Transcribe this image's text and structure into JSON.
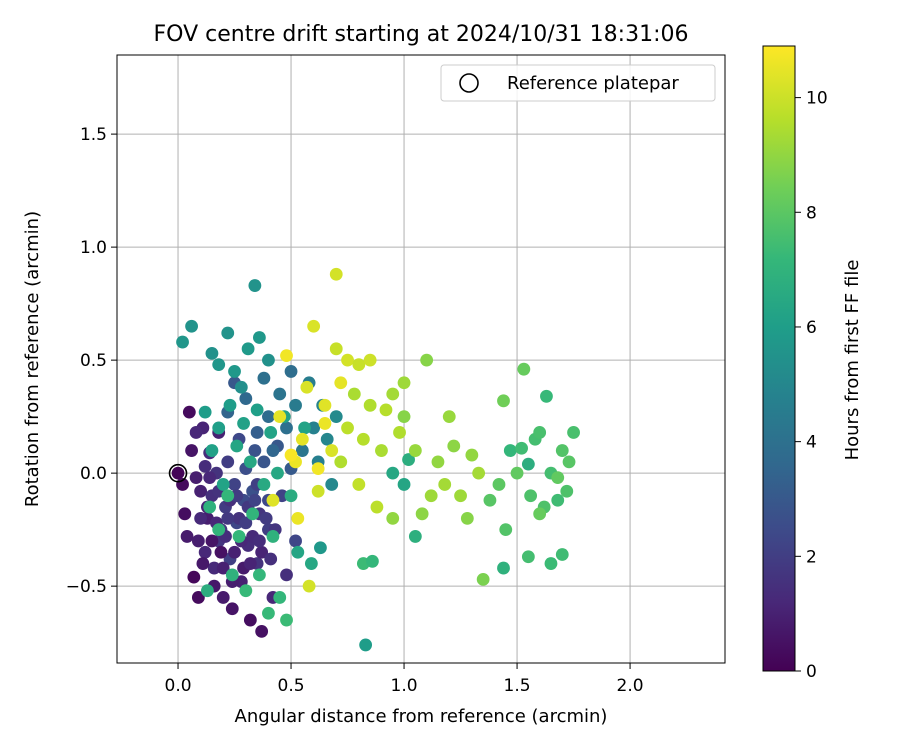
{
  "chart_data": {
    "type": "scatter",
    "title": "FOV centre drift starting at 2024/10/31 18:31:06",
    "xlabel": "Angular distance from reference (arcmin)",
    "ylabel": "Rotation from reference (arcmin)",
    "xlim": [
      -0.27,
      2.42
    ],
    "ylim": [
      -0.84,
      1.85
    ],
    "x_ticks": [
      "0.0",
      "0.5",
      "1.0",
      "1.5",
      "2.0"
    ],
    "y_ticks": [
      "−0.5",
      "0.0",
      "0.5",
      "1.0",
      "1.5"
    ],
    "x_tick_values": [
      0,
      0.5,
      1.0,
      1.5,
      2.0
    ],
    "y_tick_values": [
      -0.5,
      0,
      0.5,
      1.0,
      1.5
    ],
    "grid": true,
    "legend": {
      "position": "top-right",
      "entries": [
        "Reference platepar"
      ]
    },
    "reference_point": {
      "x": 0.0,
      "y": 0.0
    },
    "colorbar": {
      "label": "Hours from first FF file",
      "colormap": "viridis",
      "range": [
        0,
        10.9
      ],
      "tick_labels": [
        "0",
        "2",
        "4",
        "6",
        "8",
        "10"
      ],
      "tick_values": [
        0,
        2,
        4,
        6,
        8,
        10
      ]
    },
    "colormap_stops": [
      "#440154",
      "#482878",
      "#3e4989",
      "#31688e",
      "#26828e",
      "#1f9e89",
      "#35b779",
      "#6ece58",
      "#b5de2b",
      "#fde725"
    ],
    "points": [
      [
        0.0,
        0.0,
        0.1
      ],
      [
        0.02,
        -0.05,
        0.3
      ],
      [
        0.03,
        -0.18,
        0.4
      ],
      [
        0.05,
        0.27,
        0.3
      ],
      [
        0.06,
        0.1,
        0.6
      ],
      [
        0.07,
        -0.46,
        0.2
      ],
      [
        0.04,
        -0.28,
        0.8
      ],
      [
        0.08,
        -0.02,
        0.9
      ],
      [
        0.09,
        -0.55,
        0.3
      ],
      [
        0.1,
        -0.08,
        1.0
      ],
      [
        0.11,
        0.2,
        1.1
      ],
      [
        0.12,
        -0.35,
        1.2
      ],
      [
        0.13,
        -0.2,
        0.9
      ],
      [
        0.14,
        0.09,
        1.4
      ],
      [
        0.15,
        -0.1,
        1.5
      ],
      [
        0.16,
        -0.42,
        1.3
      ],
      [
        0.17,
        0.0,
        1.6
      ],
      [
        0.18,
        -0.3,
        1.7
      ],
      [
        0.19,
        -0.25,
        1.8
      ],
      [
        0.2,
        -0.55,
        0.8
      ],
      [
        0.21,
        -0.15,
        1.9
      ],
      [
        0.22,
        0.05,
        2.0
      ],
      [
        0.23,
        -0.38,
        2.1
      ],
      [
        0.24,
        -0.6,
        0.6
      ],
      [
        0.25,
        -0.05,
        2.2
      ],
      [
        0.26,
        -0.22,
        2.3
      ],
      [
        0.27,
        0.15,
        2.4
      ],
      [
        0.28,
        -0.48,
        1.0
      ],
      [
        0.29,
        -0.12,
        2.5
      ],
      [
        0.3,
        0.02,
        2.6
      ],
      [
        0.31,
        -0.32,
        1.4
      ],
      [
        0.32,
        -0.65,
        0.4
      ],
      [
        0.33,
        -0.08,
        2.7
      ],
      [
        0.34,
        0.1,
        2.8
      ],
      [
        0.35,
        -0.4,
        1.6
      ],
      [
        0.36,
        -0.18,
        1.7
      ],
      [
        0.37,
        -0.7,
        0.5
      ],
      [
        0.38,
        0.05,
        2.9
      ],
      [
        0.4,
        -0.25,
        2.0
      ],
      [
        0.42,
        -0.55,
        1.2
      ],
      [
        0.44,
        0.12,
        3.0
      ],
      [
        0.46,
        -0.1,
        2.2
      ],
      [
        0.48,
        -0.45,
        1.5
      ],
      [
        0.5,
        0.02,
        3.1
      ],
      [
        0.52,
        -0.3,
        2.3
      ],
      [
        0.09,
        -0.3,
        0.9
      ],
      [
        0.11,
        -0.4,
        0.7
      ],
      [
        0.13,
        -0.15,
        1.1
      ],
      [
        0.15,
        -0.3,
        0.6
      ],
      [
        0.17,
        -0.22,
        1.2
      ],
      [
        0.19,
        -0.35,
        0.5
      ],
      [
        0.21,
        -0.28,
        1.4
      ],
      [
        0.23,
        -0.12,
        1.5
      ],
      [
        0.25,
        -0.35,
        1.0
      ],
      [
        0.27,
        -0.2,
        1.6
      ],
      [
        0.29,
        -0.42,
        0.8
      ],
      [
        0.31,
        -0.15,
        1.8
      ],
      [
        0.33,
        -0.28,
        1.3
      ],
      [
        0.35,
        -0.05,
        2.1
      ],
      [
        0.37,
        -0.35,
        1.1
      ],
      [
        0.39,
        -0.2,
        1.9
      ],
      [
        0.41,
        -0.38,
        1.5
      ],
      [
        0.43,
        -0.25,
        1.7
      ],
      [
        0.1,
        -0.2,
        1.3
      ],
      [
        0.14,
        -0.02,
        1.2
      ],
      [
        0.18,
        -0.08,
        1.6
      ],
      [
        0.22,
        -0.2,
        1.8
      ],
      [
        0.26,
        -0.1,
        1.9
      ],
      [
        0.3,
        -0.22,
        2.0
      ],
      [
        0.34,
        -0.12,
        2.2
      ],
      [
        0.12,
        0.03,
        1.4
      ],
      [
        0.16,
        -0.5,
        0.7
      ],
      [
        0.2,
        -0.42,
        1.0
      ],
      [
        0.24,
        -0.48,
        0.9
      ],
      [
        0.28,
        -0.3,
        1.2
      ],
      [
        0.32,
        -0.4,
        1.1
      ],
      [
        0.36,
        -0.3,
        1.4
      ],
      [
        0.4,
        -0.12,
        2.4
      ],
      [
        0.18,
        0.18,
        1.0
      ],
      [
        0.08,
        0.18,
        1.2
      ],
      [
        0.22,
        0.27,
        3.5
      ],
      [
        0.25,
        0.4,
        3.0
      ],
      [
        0.3,
        0.33,
        3.7
      ],
      [
        0.35,
        0.18,
        3.3
      ],
      [
        0.38,
        0.42,
        4.0
      ],
      [
        0.4,
        0.25,
        3.8
      ],
      [
        0.42,
        0.1,
        3.6
      ],
      [
        0.45,
        0.35,
        4.2
      ],
      [
        0.48,
        0.2,
        4.0
      ],
      [
        0.5,
        0.45,
        3.9
      ],
      [
        0.52,
        0.3,
        4.5
      ],
      [
        0.55,
        0.1,
        4.3
      ],
      [
        0.58,
        0.4,
        4.6
      ],
      [
        0.6,
        0.2,
        4.8
      ],
      [
        0.62,
        0.05,
        4.7
      ],
      [
        0.64,
        0.3,
        4.9
      ],
      [
        0.66,
        0.15,
        5.0
      ],
      [
        0.68,
        -0.05,
        5.1
      ],
      [
        0.7,
        0.25,
        5.2
      ],
      [
        0.15,
        0.53,
        5.5
      ],
      [
        0.18,
        0.48,
        5.7
      ],
      [
        0.22,
        0.62,
        5.6
      ],
      [
        0.25,
        0.45,
        5.8
      ],
      [
        0.28,
        0.38,
        5.4
      ],
      [
        0.31,
        0.55,
        5.9
      ],
      [
        0.34,
        0.83,
        5.6
      ],
      [
        0.36,
        0.6,
        5.8
      ],
      [
        0.4,
        0.5,
        5.5
      ],
      [
        0.06,
        0.65,
        5.6
      ],
      [
        0.02,
        0.58,
        5.7
      ],
      [
        0.12,
        0.27,
        6.0
      ],
      [
        0.15,
        0.1,
        6.2
      ],
      [
        0.18,
        0.2,
        6.1
      ],
      [
        0.2,
        -0.05,
        6.3
      ],
      [
        0.23,
        0.3,
        6.0
      ],
      [
        0.26,
        0.12,
        6.4
      ],
      [
        0.29,
        0.22,
        6.2
      ],
      [
        0.32,
        0.05,
        6.5
      ],
      [
        0.35,
        0.28,
        6.1
      ],
      [
        0.38,
        -0.05,
        6.6
      ],
      [
        0.41,
        0.18,
        6.3
      ],
      [
        0.44,
        0.0,
        6.5
      ],
      [
        0.47,
        0.25,
        6.2
      ],
      [
        0.5,
        -0.1,
        6.7
      ],
      [
        0.53,
        -0.35,
        6.4
      ],
      [
        0.56,
        0.2,
        6.3
      ],
      [
        0.59,
        -0.4,
        6.5
      ],
      [
        0.63,
        -0.33,
        5.8
      ],
      [
        0.14,
        -0.15,
        7.0
      ],
      [
        0.18,
        -0.25,
        7.1
      ],
      [
        0.22,
        -0.1,
        7.2
      ],
      [
        0.24,
        -0.45,
        7.0
      ],
      [
        0.27,
        -0.28,
        7.2
      ],
      [
        0.3,
        -0.52,
        7.3
      ],
      [
        0.33,
        -0.18,
        7.1
      ],
      [
        0.36,
        -0.45,
        7.2
      ],
      [
        0.4,
        -0.62,
        7.3
      ],
      [
        0.42,
        -0.28,
        7.0
      ],
      [
        0.45,
        -0.55,
        7.2
      ],
      [
        0.48,
        -0.65,
        7.4
      ],
      [
        0.13,
        -0.52,
        6.8
      ],
      [
        0.82,
        -0.4,
        7.4
      ],
      [
        0.86,
        -0.39,
        7.2
      ],
      [
        0.83,
        -0.76,
        6.0
      ],
      [
        0.95,
        0.0,
        6.5
      ],
      [
        1.02,
        0.06,
        6.8
      ],
      [
        1.05,
        -0.28,
        6.9
      ],
      [
        1.0,
        -0.05,
        6.4
      ],
      [
        1.47,
        0.1,
        7.2
      ],
      [
        1.52,
        0.11,
        7.5
      ],
      [
        1.55,
        0.04,
        6.8
      ],
      [
        1.58,
        0.15,
        7.6
      ],
      [
        1.6,
        0.18,
        7.7
      ],
      [
        1.62,
        -0.15,
        7.8
      ],
      [
        1.65,
        0.0,
        7.6
      ],
      [
        1.68,
        -0.12,
        7.5
      ],
      [
        1.7,
        0.1,
        7.9
      ],
      [
        1.72,
        -0.08,
        7.8
      ],
      [
        1.75,
        0.18,
        7.7
      ],
      [
        1.63,
        0.34,
        7.3
      ],
      [
        1.55,
        -0.37,
        7.6
      ],
      [
        1.65,
        -0.4,
        7.4
      ],
      [
        1.7,
        -0.36,
        7.5
      ],
      [
        1.44,
        -0.42,
        7.0
      ],
      [
        1.38,
        -0.12,
        8.0
      ],
      [
        1.42,
        -0.05,
        8.1
      ],
      [
        1.45,
        -0.25,
        7.9
      ],
      [
        1.5,
        0.0,
        8.2
      ],
      [
        1.56,
        -0.1,
        7.8
      ],
      [
        1.6,
        -0.18,
        8.3
      ],
      [
        1.68,
        -0.02,
        8.2
      ],
      [
        1.73,
        0.05,
        8.0
      ],
      [
        1.44,
        0.32,
        8.5
      ],
      [
        1.53,
        0.46,
        8.3
      ],
      [
        1.35,
        -0.47,
        8.7
      ],
      [
        0.95,
        -0.2,
        9.1
      ],
      [
        1.0,
        0.25,
        8.9
      ],
      [
        1.05,
        0.1,
        9.2
      ],
      [
        1.08,
        -0.18,
        9.0
      ],
      [
        1.1,
        0.5,
        8.9
      ],
      [
        1.12,
        -0.1,
        9.3
      ],
      [
        1.15,
        0.05,
        9.1
      ],
      [
        1.18,
        -0.05,
        9.4
      ],
      [
        1.2,
        0.25,
        9.2
      ],
      [
        1.22,
        0.12,
        9.0
      ],
      [
        1.25,
        -0.1,
        9.3
      ],
      [
        1.28,
        -0.2,
        8.9
      ],
      [
        1.3,
        0.08,
        9.1
      ],
      [
        1.33,
        0.0,
        9.4
      ],
      [
        0.72,
        0.05,
        9.6
      ],
      [
        0.75,
        0.2,
        9.8
      ],
      [
        0.78,
        0.35,
        9.5
      ],
      [
        0.8,
        -0.05,
        9.9
      ],
      [
        0.82,
        0.15,
        9.7
      ],
      [
        0.85,
        0.3,
        9.6
      ],
      [
        0.88,
        -0.15,
        9.8
      ],
      [
        0.9,
        0.1,
        9.5
      ],
      [
        0.92,
        0.28,
        9.7
      ],
      [
        0.95,
        0.35,
        9.4
      ],
      [
        0.98,
        0.18,
        9.6
      ],
      [
        1.0,
        0.4,
        9.3
      ],
      [
        0.7,
        0.55,
        10.0
      ],
      [
        0.75,
        0.5,
        10.2
      ],
      [
        0.8,
        0.48,
        10.0
      ],
      [
        0.85,
        0.5,
        10.1
      ],
      [
        0.6,
        0.65,
        10.3
      ],
      [
        0.7,
        0.88,
        10.2
      ],
      [
        0.65,
        0.3,
        10.4
      ],
      [
        0.68,
        0.1,
        10.3
      ],
      [
        0.55,
        0.15,
        10.5
      ],
      [
        0.52,
        0.05,
        10.6
      ],
      [
        0.48,
        0.52,
        10.7
      ],
      [
        0.45,
        0.25,
        10.5
      ],
      [
        0.42,
        -0.12,
        10.4
      ],
      [
        0.58,
        -0.5,
        10.2
      ],
      [
        0.53,
        -0.2,
        10.6
      ],
      [
        0.62,
        -0.08,
        10.1
      ],
      [
        0.57,
        0.38,
        10.3
      ],
      [
        0.72,
        0.4,
        10.5
      ],
      [
        0.65,
        0.22,
        10.6
      ],
      [
        0.62,
        0.02,
        10.7
      ],
      [
        0.5,
        0.08,
        10.8
      ]
    ]
  }
}
